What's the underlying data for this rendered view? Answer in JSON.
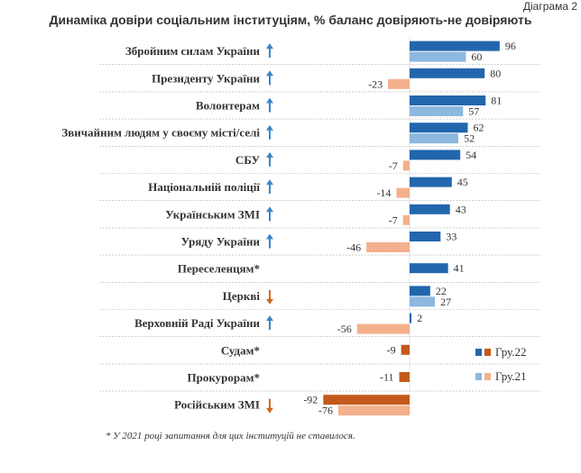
{
  "corner_label": "Діаграма 2",
  "footnote": "* У 2021 році запитання для цих інституцій не ставилося.",
  "colors": {
    "series_2022_positive": "#2266ad",
    "series_2021_positive": "#8db8e0",
    "series_2022_negative": "#c45a1c",
    "series_2021_negative": "#f4b08c",
    "arrow_up": "#3a86c8",
    "arrow_down": "#d2691e",
    "separator": "#b0b0b0"
  },
  "chart_data": {
    "type": "bar",
    "orientation": "horizontal",
    "title": "Динаміка довіри соціальним інституціям, % баланс довіряють-не довіряють",
    "legend_position": "bottom-right",
    "grid": false,
    "xlim": [
      -100,
      100
    ],
    "categories": [
      "Збройним силам України",
      "Президенту України",
      "Волонтерам",
      "Звичайним людям у своєму місті/селі",
      "СБУ",
      "Національній поліції",
      "Українським ЗМІ",
      "Уряду України",
      "Переселенцям*",
      "Церкві",
      "Верховній Раді України",
      "Судам*",
      "Прокурорам*",
      "Російським ЗМІ"
    ],
    "trend_icons": [
      "up-arrow-icon",
      "up-arrow-icon",
      "up-arrow-icon",
      "up-arrow-icon",
      "up-arrow-icon",
      "up-arrow-icon",
      "up-arrow-icon",
      "up-arrow-icon",
      "",
      "down-arrow-icon",
      "up-arrow-icon",
      "",
      "",
      "down-arrow-icon"
    ],
    "series": [
      {
        "name": "Гру.22",
        "values": [
          96,
          80,
          81,
          62,
          54,
          45,
          43,
          33,
          41,
          22,
          2,
          -9,
          -11,
          -92
        ]
      },
      {
        "name": "Гру.21",
        "values": [
          60,
          -23,
          57,
          52,
          -7,
          -14,
          -7,
          -46,
          null,
          27,
          -56,
          null,
          null,
          -76
        ]
      }
    ]
  }
}
